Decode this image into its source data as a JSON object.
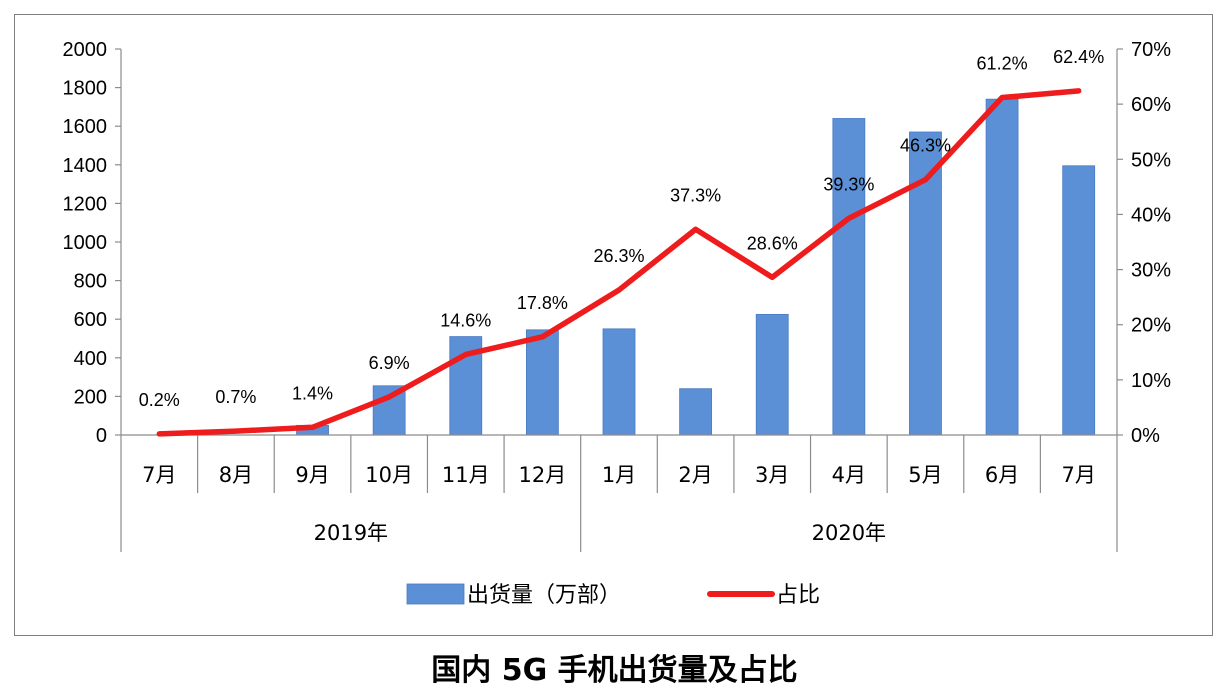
{
  "chart_data": {
    "type": "bar+line",
    "caption": "国内 5G 手机出货量及占比",
    "categories": [
      "7月",
      "8月",
      "9月",
      "10月",
      "11月",
      "12月",
      "1月",
      "2月",
      "3月",
      "4月",
      "5月",
      "6月",
      "7月"
    ],
    "year_groups": [
      {
        "label": "2019年",
        "count": 6
      },
      {
        "label": "2020年",
        "count": 7
      }
    ],
    "series": [
      {
        "name": "出货量（万部）",
        "type": "bar",
        "axis": "left",
        "color": "#5b8fd6",
        "values": [
          0,
          0,
          50,
          255,
          510,
          545,
          550,
          240,
          625,
          1640,
          1570,
          1740,
          1395
        ]
      },
      {
        "name": "占比",
        "type": "line",
        "axis": "right",
        "color": "#ee1c1c",
        "values": [
          0.2,
          0.7,
          1.4,
          6.9,
          14.6,
          17.8,
          26.3,
          37.3,
          28.6,
          39.3,
          46.3,
          61.2,
          62.4
        ],
        "labels": [
          "0.2%",
          "0.7%",
          "1.4%",
          "6.9%",
          "14.6%",
          "17.8%",
          "26.3%",
          "37.3%",
          "28.6%",
          "39.3%",
          "46.3%",
          "61.2%",
          "62.4%"
        ]
      }
    ],
    "y_left": {
      "min": 0,
      "max": 2000,
      "step": 200,
      "ticks": [
        "0",
        "200",
        "400",
        "600",
        "800",
        "1000",
        "1200",
        "1400",
        "1600",
        "1800",
        "2000"
      ]
    },
    "y_right": {
      "min": 0,
      "max": 70,
      "step": 10,
      "ticks": [
        "0%",
        "10%",
        "20%",
        "30%",
        "40%",
        "50%",
        "60%",
        "70%"
      ]
    },
    "legend_position": "bottom"
  }
}
